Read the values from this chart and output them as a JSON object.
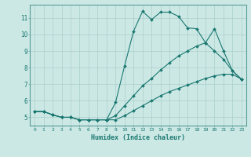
{
  "xlabel": "Humidex (Indice chaleur)",
  "bg_color": "#cce8e5",
  "grid_color": "#aacfcc",
  "line_color": "#1a7870",
  "spine_color": "#5a9e98",
  "xlim": [
    -0.5,
    23.5
  ],
  "ylim": [
    4.5,
    11.8
  ],
  "xticks": [
    0,
    1,
    2,
    3,
    4,
    5,
    6,
    7,
    8,
    9,
    10,
    11,
    12,
    13,
    14,
    15,
    16,
    17,
    18,
    19,
    20,
    21,
    22,
    23
  ],
  "yticks": [
    5,
    6,
    7,
    8,
    9,
    10,
    11
  ],
  "line1_x": [
    0,
    1,
    2,
    3,
    4,
    5,
    6,
    7,
    8,
    9,
    10,
    11,
    12,
    13,
    14,
    15,
    16,
    17,
    18,
    19,
    20,
    21,
    22,
    23
  ],
  "line1_y": [
    5.35,
    5.35,
    5.15,
    5.0,
    5.0,
    4.85,
    4.85,
    4.85,
    4.85,
    5.9,
    8.1,
    10.2,
    11.4,
    10.9,
    11.35,
    11.35,
    11.1,
    10.4,
    10.35,
    9.5,
    10.35,
    9.0,
    7.8,
    7.3
  ],
  "line2_x": [
    0,
    1,
    2,
    3,
    4,
    5,
    6,
    7,
    8,
    9,
    10,
    11,
    12,
    13,
    14,
    15,
    16,
    17,
    18,
    19,
    20,
    21,
    22,
    23
  ],
  "line2_y": [
    5.35,
    5.35,
    5.15,
    5.0,
    5.0,
    4.85,
    4.85,
    4.85,
    4.85,
    5.1,
    5.7,
    6.3,
    6.9,
    7.35,
    7.85,
    8.3,
    8.7,
    9.0,
    9.3,
    9.5,
    9.0,
    8.5,
    7.8,
    7.3
  ],
  "line3_x": [
    0,
    1,
    2,
    3,
    4,
    5,
    6,
    7,
    8,
    9,
    10,
    11,
    12,
    13,
    14,
    15,
    16,
    17,
    18,
    19,
    20,
    21,
    22,
    23
  ],
  "line3_y": [
    5.35,
    5.35,
    5.15,
    5.0,
    5.0,
    4.85,
    4.85,
    4.85,
    4.85,
    4.85,
    5.1,
    5.4,
    5.7,
    6.0,
    6.3,
    6.55,
    6.75,
    6.95,
    7.15,
    7.35,
    7.5,
    7.6,
    7.6,
    7.3
  ]
}
